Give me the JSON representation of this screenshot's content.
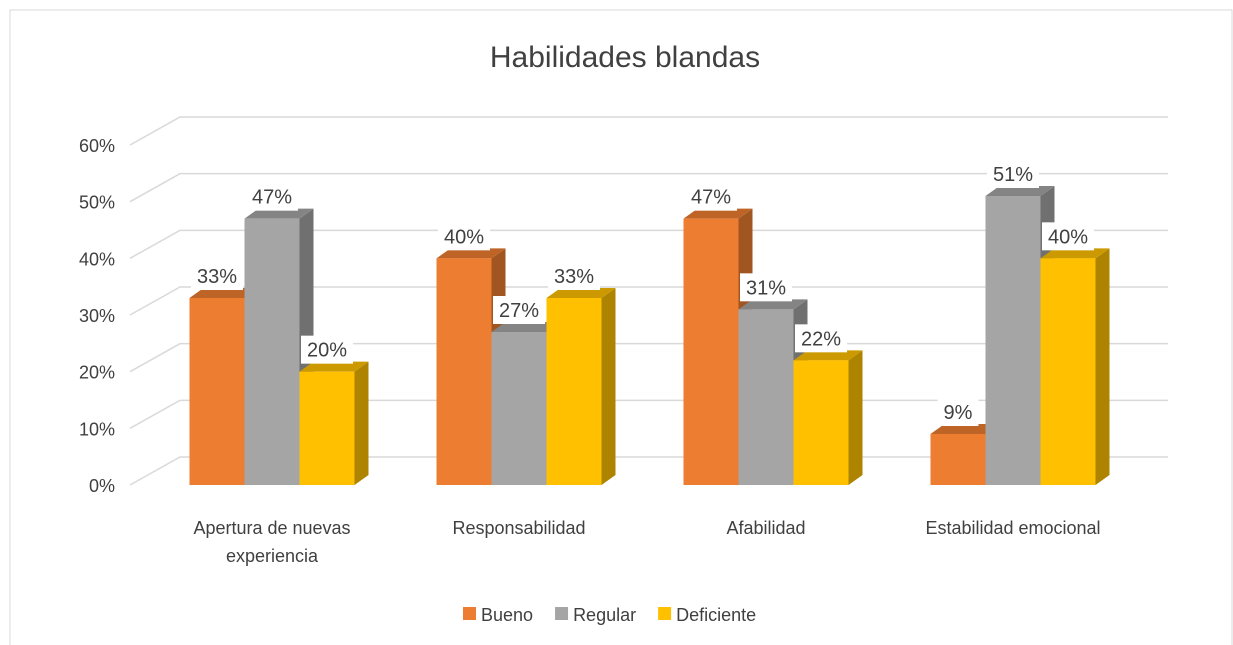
{
  "chart_data": {
    "type": "bar3d",
    "title": "Habilidades blandas",
    "categories": [
      "Apertura de nuevas experiencia",
      "Responsabilidad",
      "Afabilidad",
      "Estabilidad emocional"
    ],
    "series": [
      {
        "name": "Bueno",
        "color": "#ed7d31",
        "values": [
          33,
          40,
          47,
          9
        ],
        "value_labels": [
          "33%",
          "40%",
          "47%",
          "9%"
        ]
      },
      {
        "name": "Regular",
        "color": "#a5a5a5",
        "values": [
          47,
          27,
          31,
          51
        ],
        "value_labels": [
          "47%",
          "27%",
          "31%",
          "51%"
        ]
      },
      {
        "name": "Deficiente",
        "color": "#ffc000",
        "values": [
          20,
          33,
          22,
          40
        ],
        "value_labels": [
          "20%",
          "33%",
          "22%",
          "40%"
        ]
      }
    ],
    "ylim": [
      0,
      60
    ],
    "yticks": [
      {
        "value": 0,
        "label": "0%"
      },
      {
        "value": 10,
        "label": "10%"
      },
      {
        "value": 20,
        "label": "20%"
      },
      {
        "value": 30,
        "label": "30%"
      },
      {
        "value": 40,
        "label": "40%"
      },
      {
        "value": 50,
        "label": "50%"
      },
      {
        "value": 60,
        "label": "60%"
      }
    ],
    "grid": true,
    "legend": "bottom"
  }
}
